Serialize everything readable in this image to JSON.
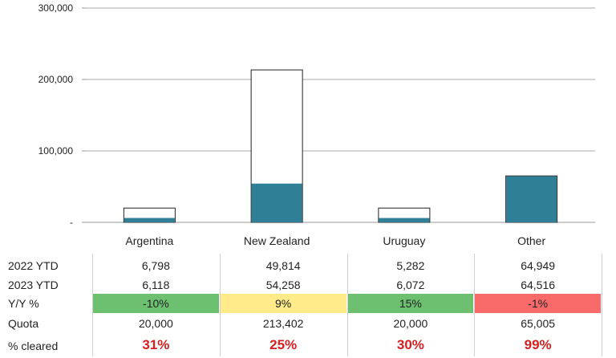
{
  "chart_data": {
    "type": "bar",
    "stacked_overlay": true,
    "categories": [
      "Argentina",
      "New Zealand",
      "Uruguay",
      "Other"
    ],
    "series": [
      {
        "values": [
          20000,
          213402,
          20000,
          65005
        ],
        "color": "#ffffff",
        "stroke": "#222222"
      },
      {
        "values": [
          6118,
          54258,
          6072,
          64516
        ],
        "color": "#2f7f97"
      }
    ],
    "ylim": [
      0,
      300000
    ],
    "yticks": [
      "300,000",
      "200,000",
      "100,000",
      "-"
    ],
    "ytick_values": [
      300000,
      200000,
      100000,
      0
    ],
    "grid": true
  },
  "table": {
    "row_labels": [
      "2022 YTD",
      "2023 YTD",
      "Y/Y %",
      "Quota",
      "% cleared"
    ],
    "ytd_2022": [
      "6,798",
      "49,814",
      "5,282",
      "64,949"
    ],
    "ytd_2023": [
      "6,118",
      "54,258",
      "6,072",
      "64,516"
    ],
    "yy_pct": [
      "-10%",
      "9%",
      "15%",
      "-1%"
    ],
    "yy_colors": [
      "#6cc070",
      "#ffeb8a",
      "#6cc070",
      "#f96b6b"
    ],
    "quota": [
      "20,000",
      "213,402",
      "20,000",
      "65,005"
    ],
    "pct_cleared": [
      "31%",
      "25%",
      "30%",
      "99%"
    ],
    "pct_color": "#d42020"
  }
}
